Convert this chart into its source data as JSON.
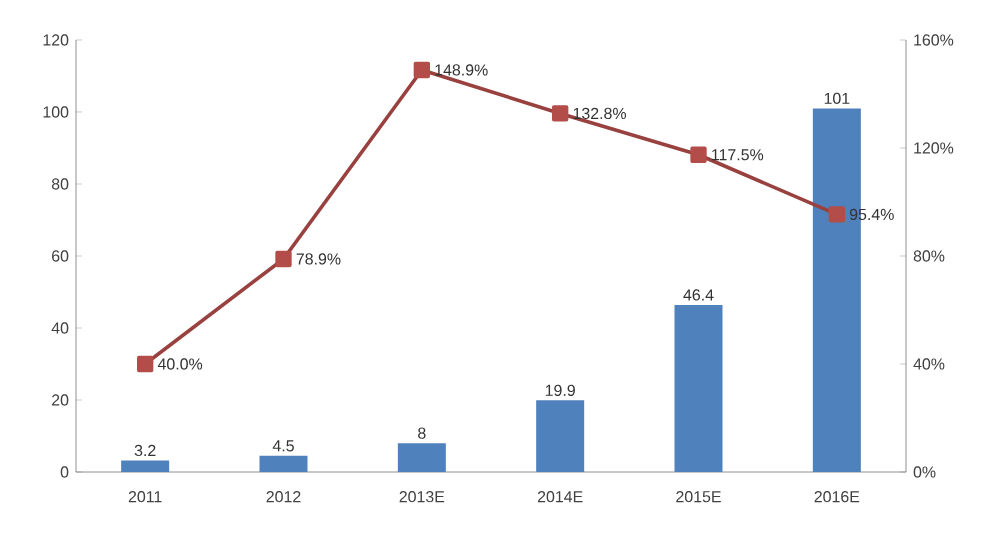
{
  "chart_data": {
    "type": "bar",
    "categories": [
      "2011",
      "2012",
      "2013E",
      "2014E",
      "2015E",
      "2016E"
    ],
    "series": [
      {
        "color": "#4f81bd",
        "values": [
          3.2,
          4.5,
          8,
          19.9,
          46.4,
          101
        ],
        "value_labels": [
          "3.2",
          "4.5",
          "8",
          "19.9",
          "46.4",
          "101"
        ]
      },
      {
        "type": "line",
        "axis": "y2",
        "color": "#b34d4a",
        "marker": "square",
        "values": [
          40.0,
          78.9,
          148.9,
          132.8,
          117.5,
          95.4
        ],
        "value_labels": [
          "40.0%",
          "78.9%",
          "148.9%",
          "132.8%",
          "117.5%",
          "95.4%"
        ]
      }
    ],
    "ylim": [
      0,
      120
    ],
    "yticks": [
      0,
      20,
      40,
      60,
      80,
      100,
      120
    ],
    "y2lim": [
      0,
      160
    ],
    "y2ticks": [
      {
        "value": 0,
        "label": "0%"
      },
      {
        "value": 40,
        "label": "40%"
      },
      {
        "value": 80,
        "label": "80%"
      },
      {
        "value": 120,
        "label": "120%"
      },
      {
        "value": 160,
        "label": "160%"
      }
    ],
    "grid": false
  }
}
